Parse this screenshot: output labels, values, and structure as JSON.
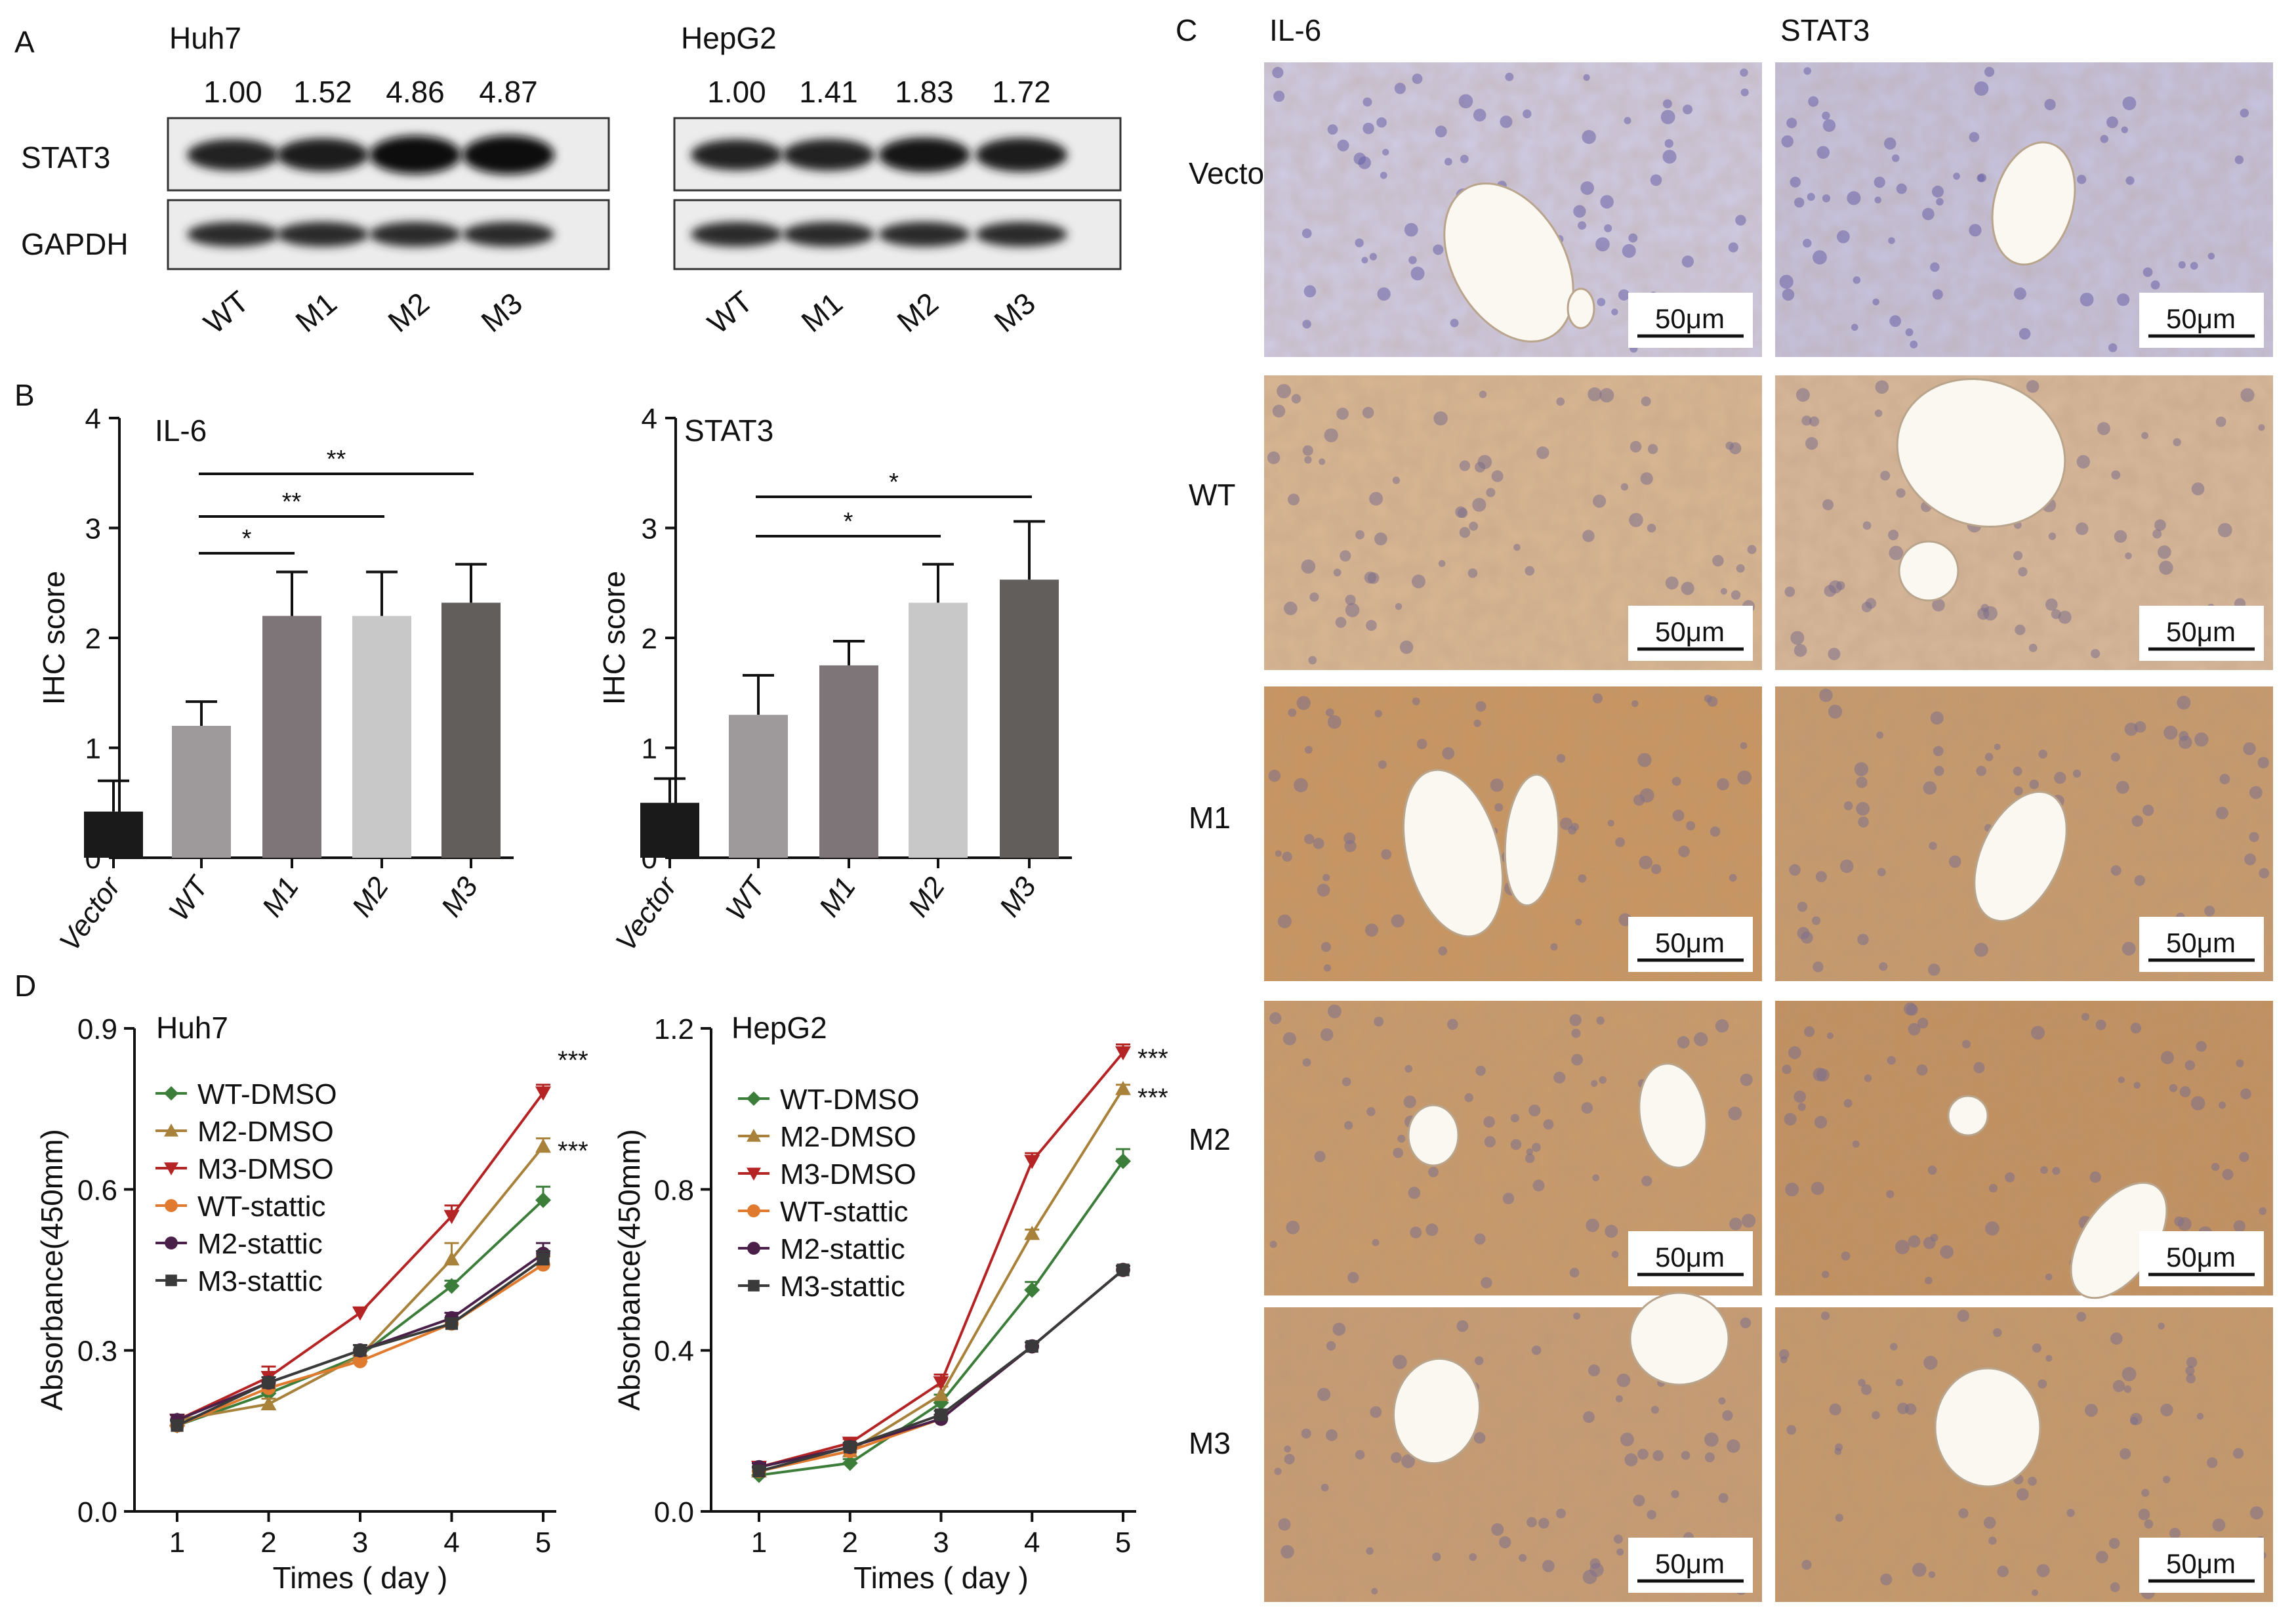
{
  "panel_letters": {
    "a": "A",
    "b": "B",
    "c": "C",
    "d": "D"
  },
  "western_blot": {
    "label_stat3": "STAT3",
    "label_gapdh": "GAPDH",
    "lanes": [
      "WT",
      "M1",
      "M2",
      "M3"
    ],
    "blots": [
      {
        "cell_line": "Huh7",
        "ratios": [
          "1.00",
          "1.52",
          "4.86",
          "4.87"
        ],
        "stat3_intensity": [
          0.62,
          0.7,
          0.95,
          0.98
        ]
      },
      {
        "cell_line": "HepG2",
        "ratios": [
          "1.00",
          "1.41",
          "1.83",
          "1.72"
        ],
        "stat3_intensity": [
          0.6,
          0.64,
          0.78,
          0.74
        ]
      }
    ]
  },
  "ihc": {
    "columns": [
      "IL-6",
      "STAT3"
    ],
    "rows": [
      "Vector",
      "WT",
      "M1",
      "M2",
      "M3"
    ],
    "scale_bar": "50μm",
    "tone": [
      [
        "#cfcce6",
        "#c6c4e2"
      ],
      [
        "#d9b794",
        "#d8b89a"
      ],
      [
        "#c9955f",
        "#c79a6c"
      ],
      [
        "#c99a6a",
        "#c2905e"
      ],
      [
        "#c79c72",
        "#c5986a"
      ]
    ],
    "vessels": [
      [
        [
          "vessel",
          "vessel"
        ],
        [
          "vessel"
        ]
      ],
      [
        [],
        [
          "vessel",
          "vessel"
        ]
      ],
      [
        [
          "vessel",
          "vessel"
        ],
        [
          "vessel"
        ]
      ],
      [
        [
          "vessel",
          "vessel"
        ],
        [
          "vessel",
          "vessel"
        ]
      ],
      [
        [
          "vessel",
          "vessel"
        ],
        [
          "vessel"
        ]
      ]
    ]
  },
  "chart_data": [
    {
      "type": "bar",
      "title": "IL-6",
      "ylabel": "IHC score",
      "categories": [
        "Vector",
        "WT",
        "M1",
        "M2",
        "M3"
      ],
      "values": [
        0.42,
        1.2,
        2.2,
        2.2,
        2.32
      ],
      "errors": [
        0.28,
        0.22,
        0.4,
        0.4,
        0.35
      ],
      "colors": [
        "#1a1a1a",
        "#9e9a9b",
        "#7d7577",
        "#c9c8c8",
        "#625e5b"
      ],
      "ylim": [
        0,
        4
      ],
      "yticks": [
        "0",
        "1",
        "2",
        "3",
        "4"
      ],
      "significance": [
        {
          "from": "WT",
          "to": "M1",
          "label": "*"
        },
        {
          "from": "WT",
          "to": "M2",
          "label": "**"
        },
        {
          "from": "WT",
          "to": "M3",
          "label": "**"
        }
      ]
    },
    {
      "type": "bar",
      "title": "STAT3",
      "ylabel": "IHC score",
      "categories": [
        "Vector",
        "WT",
        "M1",
        "M2",
        "M3"
      ],
      "values": [
        0.5,
        1.3,
        1.75,
        2.32,
        2.53
      ],
      "errors": [
        0.22,
        0.36,
        0.22,
        0.35,
        0.53
      ],
      "colors": [
        "#1a1a1a",
        "#9e9a9b",
        "#7d7577",
        "#c9c8c8",
        "#625e5b"
      ],
      "ylim": [
        0,
        4
      ],
      "yticks": [
        "0",
        "1",
        "2",
        "3",
        "4"
      ],
      "significance": [
        {
          "from": "WT",
          "to": "M2",
          "label": "*"
        },
        {
          "from": "WT",
          "to": "M3",
          "label": "*"
        }
      ]
    },
    {
      "type": "line",
      "title": "Huh7",
      "xlabel": "Times ( day )",
      "ylabel": "Absorbance(450mm)",
      "x": [
        1,
        2,
        3,
        4,
        5
      ],
      "ylim": [
        0,
        0.9
      ],
      "yticks": [
        "0.0",
        "0.3",
        "0.6",
        "0.9"
      ],
      "series": [
        {
          "name": "WT-DMSO",
          "values": [
            0.16,
            0.22,
            0.29,
            0.42,
            0.58
          ],
          "error": [
            0.01,
            0.01,
            0.01,
            0.01,
            0.025
          ],
          "color": "#3c7d3a",
          "marker": "diamond"
        },
        {
          "name": "M2-DMSO",
          "values": [
            0.17,
            0.2,
            0.29,
            0.47,
            0.68
          ],
          "error": [
            0.01,
            0.01,
            0.01,
            0.03,
            0.015
          ],
          "color": "#a8813a",
          "marker": "triangle-up"
        },
        {
          "name": "M3-DMSO",
          "values": [
            0.17,
            0.25,
            0.37,
            0.55,
            0.78
          ],
          "error": [
            0.01,
            0.02,
            0.01,
            0.02,
            0.015
          ],
          "color": "#b52424",
          "marker": "triangle-down"
        },
        {
          "name": "WT-stattic",
          "values": [
            0.16,
            0.23,
            0.28,
            0.35,
            0.46
          ],
          "error": [
            0.01,
            0.01,
            0.01,
            0.01,
            0.015
          ],
          "color": "#e07a2e",
          "marker": "circle"
        },
        {
          "name": "M2-stattic",
          "values": [
            0.17,
            0.24,
            0.3,
            0.36,
            0.48
          ],
          "error": [
            0.01,
            0.01,
            0.01,
            0.01,
            0.02
          ],
          "color": "#4a2048",
          "marker": "circle"
        },
        {
          "name": "M3-stattic",
          "values": [
            0.16,
            0.24,
            0.3,
            0.35,
            0.47
          ],
          "error": [
            0.01,
            0.01,
            0.01,
            0.01,
            0.015
          ],
          "color": "#3a3a3a",
          "marker": "square"
        }
      ],
      "annotations": [
        "***",
        "***"
      ]
    },
    {
      "type": "line",
      "title": "HepG2",
      "xlabel": "Times ( day )",
      "ylabel": "Absorbance(450mm)",
      "x": [
        1,
        2,
        3,
        4,
        5
      ],
      "ylim": [
        0,
        1.2
      ],
      "yticks": [
        "0.0",
        "0.4",
        "0.8",
        "1.2"
      ],
      "series": [
        {
          "name": "WT-DMSO",
          "values": [
            0.09,
            0.12,
            0.27,
            0.55,
            0.87
          ],
          "error": [
            0.01,
            0.01,
            0.02,
            0.02,
            0.03
          ],
          "color": "#3c7d3a",
          "marker": "diamond"
        },
        {
          "name": "M2-DMSO",
          "values": [
            0.1,
            0.15,
            0.29,
            0.69,
            1.05
          ],
          "error": [
            0.01,
            0.01,
            0.02,
            0.01,
            0.01
          ],
          "color": "#a8813a",
          "marker": "triangle-up"
        },
        {
          "name": "M3-DMSO",
          "values": [
            0.11,
            0.17,
            0.32,
            0.87,
            1.14
          ],
          "error": [
            0.01,
            0.01,
            0.02,
            0.02,
            0.02
          ],
          "color": "#b52424",
          "marker": "triangle-down"
        },
        {
          "name": "WT-stattic",
          "values": [
            0.1,
            0.15,
            0.23,
            0.41,
            0.6
          ],
          "error": [
            0.01,
            0.01,
            0.01,
            0.01,
            0.01
          ],
          "color": "#e07a2e",
          "marker": "circle"
        },
        {
          "name": "M2-stattic",
          "values": [
            0.11,
            0.16,
            0.23,
            0.41,
            0.6
          ],
          "error": [
            0.01,
            0.01,
            0.01,
            0.01,
            0.01
          ],
          "color": "#4a2048",
          "marker": "circle"
        },
        {
          "name": "M3-stattic",
          "values": [
            0.1,
            0.16,
            0.24,
            0.41,
            0.6
          ],
          "error": [
            0.01,
            0.01,
            0.01,
            0.01,
            0.01
          ],
          "color": "#3a3a3a",
          "marker": "square"
        }
      ],
      "annotations": [
        "***",
        "***"
      ]
    }
  ]
}
